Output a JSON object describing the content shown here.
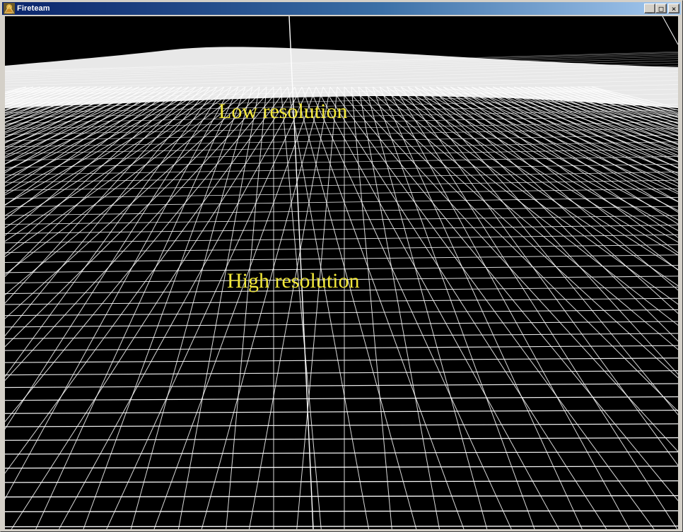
{
  "window": {
    "title": "Fireteam",
    "app_icon": "fireteam-app-icon",
    "buttons": {
      "minimize": "_",
      "maximize": "□",
      "close": "×"
    }
  },
  "scene": {
    "label_low": "Low resolution",
    "label_high": "High resolution",
    "label_color": "#f2e83a",
    "wireframe_color": "#ffffff",
    "background_color": "#000000"
  }
}
